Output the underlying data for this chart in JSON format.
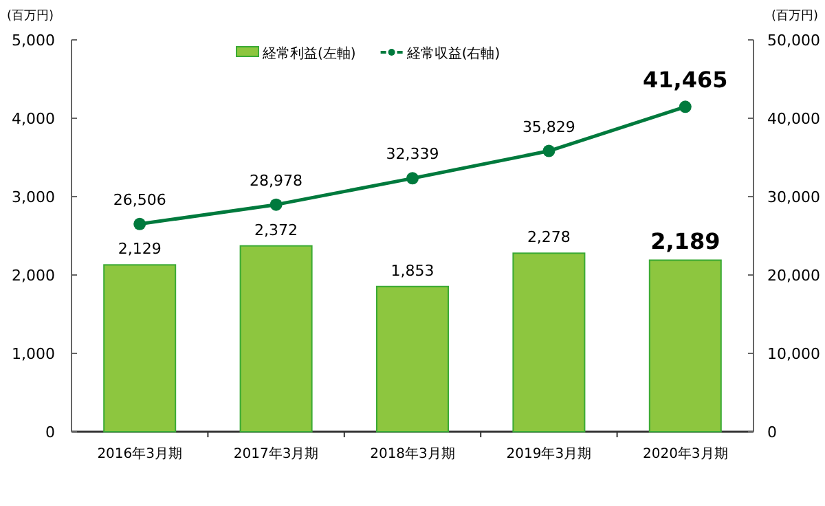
{
  "chart_data": {
    "type": "bar",
    "ylabel": "(百万円)",
    "y2label": "(百万円)",
    "categories": [
      "2016年3月期",
      "2017年3月期",
      "2018年3月期",
      "2019年3月期",
      "2020年3月期"
    ],
    "series": [
      {
        "name": "経常利益(左軸)",
        "color": "#8dc63f",
        "values": [
          2129,
          2372,
          1853,
          2278,
          2189
        ],
        "value_labels": [
          "2,129",
          "2,372",
          "1,853",
          "2,278",
          "2,189"
        ]
      },
      {
        "name": "経常収益(右軸)",
        "type": "line",
        "axis": "y2",
        "color": "#007a3d",
        "marker": "circle",
        "values": [
          26506,
          28978,
          32339,
          35829,
          41465
        ],
        "value_labels": [
          "26,506",
          "28,978",
          "32,339",
          "35,829",
          "41,465"
        ]
      }
    ],
    "ylim": [
      0,
      5000
    ],
    "yticks": [
      {
        "value": 0,
        "label": "0"
      },
      {
        "value": 1000,
        "label": "1,000"
      },
      {
        "value": 2000,
        "label": "2,000"
      },
      {
        "value": 3000,
        "label": "3,000"
      },
      {
        "value": 4000,
        "label": "4,000"
      },
      {
        "value": 5000,
        "label": "5,000"
      }
    ],
    "y2lim": [
      0,
      50000
    ],
    "y2ticks": [
      {
        "value": 0,
        "label": "0"
      },
      {
        "value": 10000,
        "label": "10,000"
      },
      {
        "value": 20000,
        "label": "20,000"
      },
      {
        "value": 30000,
        "label": "30,000"
      },
      {
        "value": 40000,
        "label": "40,000"
      },
      {
        "value": 50000,
        "label": "50,000"
      }
    ],
    "grid": false,
    "legend": "top"
  }
}
